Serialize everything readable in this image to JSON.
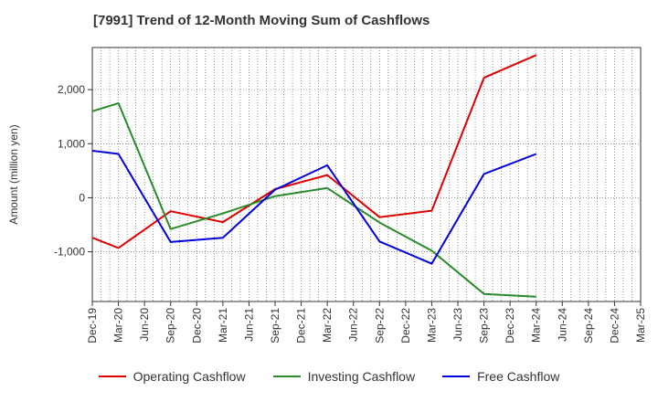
{
  "title": "[7991]  Trend of 12-Month Moving Sum of Cashflows",
  "colors": {
    "operating": "#e00000",
    "investing": "#2a8a2a",
    "free": "#0000dd"
  },
  "chart_data": {
    "type": "line",
    "title": "[7991]  Trend of 12-Month Moving Sum of Cashflows",
    "xlabel": "",
    "ylabel": "Amount (million yen)",
    "ylim": [
      -1920,
      2780
    ],
    "yticks": [
      -1000,
      0,
      1000,
      2000
    ],
    "ytick_labels": [
      "-1,000",
      "0",
      "1,000",
      "2,000"
    ],
    "x": [
      "Dec-19",
      "Mar-20",
      "Jun-20",
      "Sep-20",
      "Dec-20",
      "Mar-21",
      "Jun-21",
      "Sep-21",
      "Dec-21",
      "Mar-22",
      "Jun-22",
      "Sep-22",
      "Dec-22",
      "Mar-23",
      "Jun-23",
      "Sep-23",
      "Dec-23",
      "Mar-24",
      "Jun-24",
      "Sep-24",
      "Dec-24",
      "Mar-25"
    ],
    "series": [
      {
        "name": "Operating Cashflow",
        "color": "#e00000",
        "values": [
          -740,
          -930,
          null,
          -250,
          null,
          -450,
          null,
          160,
          null,
          420,
          null,
          -360,
          null,
          -240,
          null,
          2220,
          null,
          2640,
          null,
          null,
          null,
          null
        ]
      },
      {
        "name": "Investing Cashflow",
        "color": "#2a8a2a",
        "values": [
          1600,
          1750,
          null,
          -580,
          null,
          -290,
          null,
          30,
          null,
          180,
          null,
          -460,
          null,
          -980,
          null,
          -1780,
          null,
          -1830,
          null,
          null,
          null,
          null
        ]
      },
      {
        "name": "Free Cashflow",
        "color": "#0000dd",
        "values": [
          870,
          810,
          null,
          -820,
          null,
          -740,
          null,
          150,
          null,
          600,
          null,
          -810,
          null,
          -1220,
          null,
          440,
          null,
          810,
          null,
          null,
          null,
          null
        ]
      }
    ],
    "grid": true,
    "legend": "bottom"
  }
}
